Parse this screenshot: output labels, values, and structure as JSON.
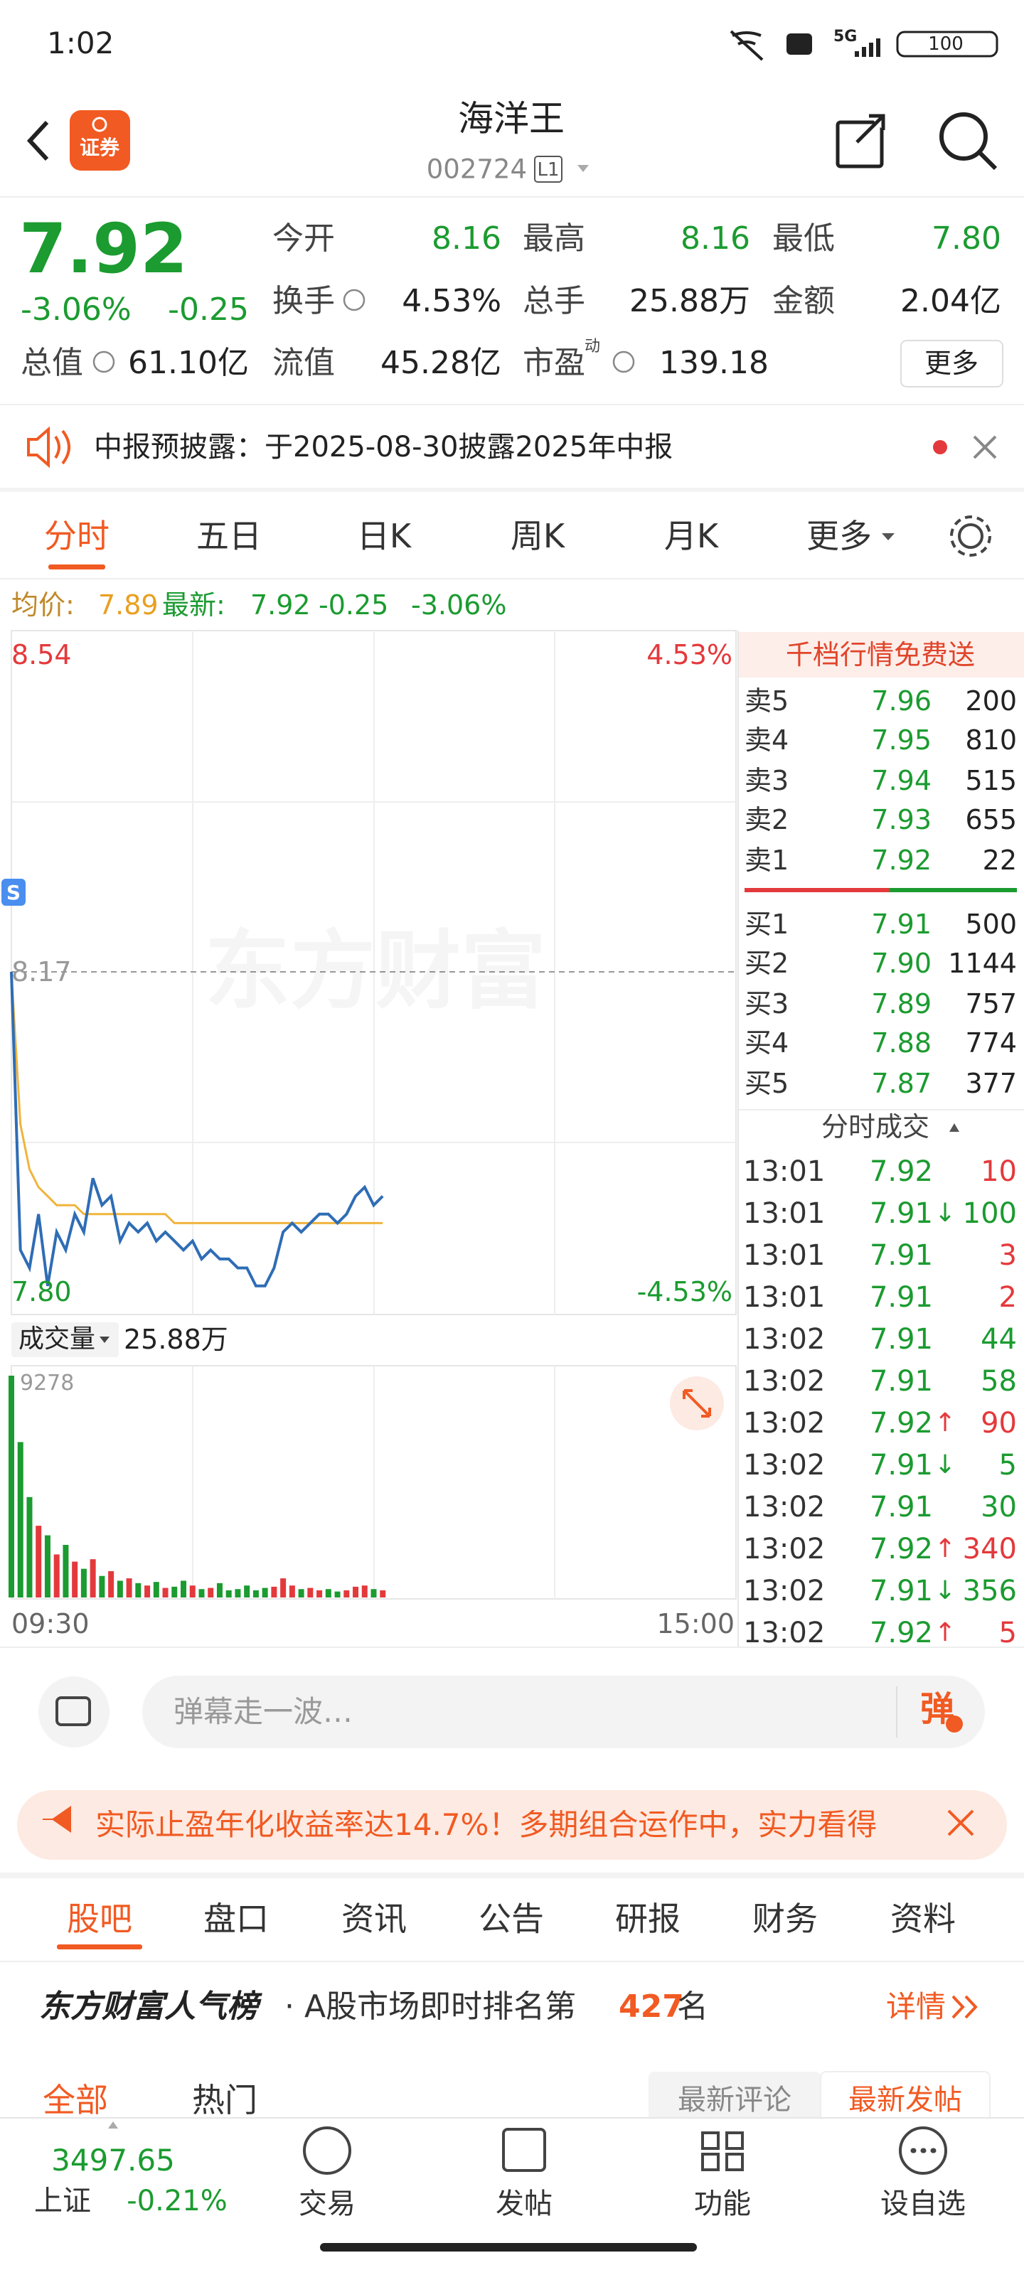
{
  "status_bar": {
    "time": "1:02",
    "network": "5G",
    "battery": "100"
  },
  "header": {
    "logo": "证券",
    "title": "海洋王",
    "code": "002724",
    "level": "L1"
  },
  "quote": {
    "price": "7.92",
    "change_pct": "-3.06%",
    "change": "-0.25",
    "stats": [
      {
        "label": "今开",
        "value": "8.16"
      },
      {
        "label": "最高",
        "value": "8.16"
      },
      {
        "label": "最低",
        "value": "7.80"
      },
      {
        "label": "换手",
        "value": "4.53%"
      },
      {
        "label": "总手",
        "value": "25.88万"
      },
      {
        "label": "金额",
        "value": "2.04亿"
      },
      {
        "label": "总值",
        "value": "61.10亿"
      },
      {
        "label": "流值",
        "value": "45.28亿"
      },
      {
        "label": "市盈",
        "value": "139.18"
      }
    ],
    "pe_tag": "动",
    "more": "更多"
  },
  "notice": {
    "text": "中报预披露：于2025-08-30披露2025年中报"
  },
  "chart_tabs": [
    "分时",
    "五日",
    "日K",
    "周K",
    "月K",
    "更多"
  ],
  "avg_bar": {
    "avg_label": "均价:",
    "avg": "7.89",
    "last_label": "最新:",
    "last": "7.92",
    "change": "-0.25",
    "change_pct": "-3.06%"
  },
  "intraday": {
    "ylim": [
      {
        "value": 7.8,
        "label": "7.80"
      },
      8.54
    ],
    "pct_top": "4.53%",
    "pct_bottom": "-4.53%",
    "prev_close": 8.17,
    "watermark": "东方财富",
    "signal": "S",
    "prices": [
      8.17,
      7.86,
      7.84,
      7.9,
      7.82,
      7.88,
      7.86,
      7.9,
      7.88,
      7.94,
      7.91,
      7.92,
      7.87,
      7.89,
      7.88,
      7.89,
      7.87,
      7.88,
      7.87,
      7.86,
      7.87,
      7.85,
      7.86,
      7.85,
      7.85,
      7.84,
      7.84,
      7.82,
      7.82,
      7.84,
      7.88,
      7.89,
      7.88,
      7.89,
      7.9,
      7.9,
      7.89,
      7.9,
      7.92,
      7.93,
      7.91,
      7.92
    ],
    "avg": [
      8.17,
      8.0,
      7.95,
      7.93,
      7.92,
      7.91,
      7.91,
      7.91,
      7.9,
      7.9,
      7.9,
      7.9,
      7.9,
      7.9,
      7.9,
      7.9,
      7.9,
      7.9,
      7.89,
      7.89,
      7.89,
      7.89,
      7.89,
      7.89,
      7.89,
      7.89,
      7.89,
      7.89,
      7.89,
      7.89,
      7.89,
      7.89,
      7.89,
      7.89,
      7.89,
      7.89,
      7.89,
      7.89,
      7.89,
      7.89,
      7.89,
      7.89
    ],
    "volume_label": "成交量",
    "volume_total": "25.88万",
    "volumes": [
      9278,
      6500,
      4200,
      3000,
      2600,
      1800,
      2200,
      1500,
      1200,
      1600,
      900,
      1100,
      700,
      800,
      600,
      500,
      650,
      400,
      450,
      700,
      500,
      350,
      400,
      600,
      300,
      350,
      500,
      300,
      400,
      450,
      800,
      500,
      350,
      400,
      300,
      350,
      250,
      300,
      450,
      500,
      350,
      300
    ],
    "vol_ylim": [
      0,
      9278
    ],
    "time_start": "09:30",
    "time_end": "15:00",
    "colors": {
      "price": "#2f6db5",
      "avg": "#f0b43c",
      "up": "#e4393c",
      "down": "#1b9b30"
    }
  },
  "order_book": {
    "banner": "千档行情免费送",
    "asks": [
      {
        "label": "卖5",
        "price": "7.96",
        "volume": "200"
      },
      {
        "label": "卖4",
        "price": "7.95",
        "volume": "810"
      },
      {
        "label": "卖3",
        "price": "7.94",
        "volume": "515"
      },
      {
        "label": "卖2",
        "price": "7.93",
        "volume": "655"
      },
      {
        "label": "卖1",
        "price": "7.92",
        "volume": "22"
      }
    ],
    "bids": [
      {
        "label": "买1",
        "price": "7.91",
        "volume": "500"
      },
      {
        "label": "买2",
        "price": "7.90",
        "volume": "1144"
      },
      {
        "label": "买3",
        "price": "7.89",
        "volume": "757"
      },
      {
        "label": "买4",
        "price": "7.88",
        "volume": "774"
      },
      {
        "label": "买5",
        "price": "7.87",
        "volume": "377"
      }
    ],
    "trades_title": "分时成交",
    "trades": [
      {
        "time": "13:01",
        "price": "7.92",
        "volume": "10",
        "color": "#e4393c"
      },
      {
        "time": "13:01",
        "price": "7.91",
        "dir": "↓",
        "volume": "100",
        "color": "#1b9b30"
      },
      {
        "time": "13:01",
        "price": "7.91",
        "volume": "3",
        "color": "#e4393c"
      },
      {
        "time": "13:01",
        "price": "7.91",
        "volume": "2",
        "color": "#e4393c"
      },
      {
        "time": "13:02",
        "price": "7.91",
        "volume": "44",
        "color": "#1b9b30"
      },
      {
        "time": "13:02",
        "price": "7.91",
        "volume": "58",
        "color": "#1b9b30"
      },
      {
        "time": "13:02",
        "price": "7.92",
        "dir": "↑",
        "volume": "90",
        "color": "#e4393c"
      },
      {
        "time": "13:02",
        "price": "7.91",
        "dir": "↓",
        "volume": "5",
        "color": "#1b9b30"
      },
      {
        "time": "13:02",
        "price": "7.91",
        "volume": "30",
        "color": "#1b9b30"
      },
      {
        "time": "13:02",
        "price": "7.92",
        "dir": "↑",
        "volume": "340",
        "color": "#e4393c"
      },
      {
        "time": "13:02",
        "price": "7.91",
        "dir": "↓",
        "volume": "356",
        "color": "#1b9b30"
      },
      {
        "time": "13:02",
        "price": "7.92",
        "dir": "↑",
        "volume": "5",
        "color": "#e4393c"
      }
    ]
  },
  "comment": {
    "placeholder": "弹幕走一波…",
    "button": "弹"
  },
  "ad": {
    "text": "实际止盈年化收益率达14.7%！多期组合运作中，实力看得"
  },
  "section_tabs": [
    "股吧",
    "盘口",
    "资讯",
    "公告",
    "研报",
    "财务",
    "资料"
  ],
  "ranking": {
    "brand": "东方财富人气榜",
    "text": "· A股市场即时排名第",
    "rank": "427",
    "suffix": "名",
    "detail": "详情"
  },
  "feed": {
    "tabs": [
      "全部",
      "热门"
    ],
    "sort": [
      "最新评论",
      "最新发帖"
    ]
  },
  "bottom_nav": {
    "index_value": "3497.65",
    "index_name": "上证",
    "index_change": "-0.21%",
    "items": [
      "交易",
      "发帖",
      "功能",
      "设自选"
    ]
  }
}
